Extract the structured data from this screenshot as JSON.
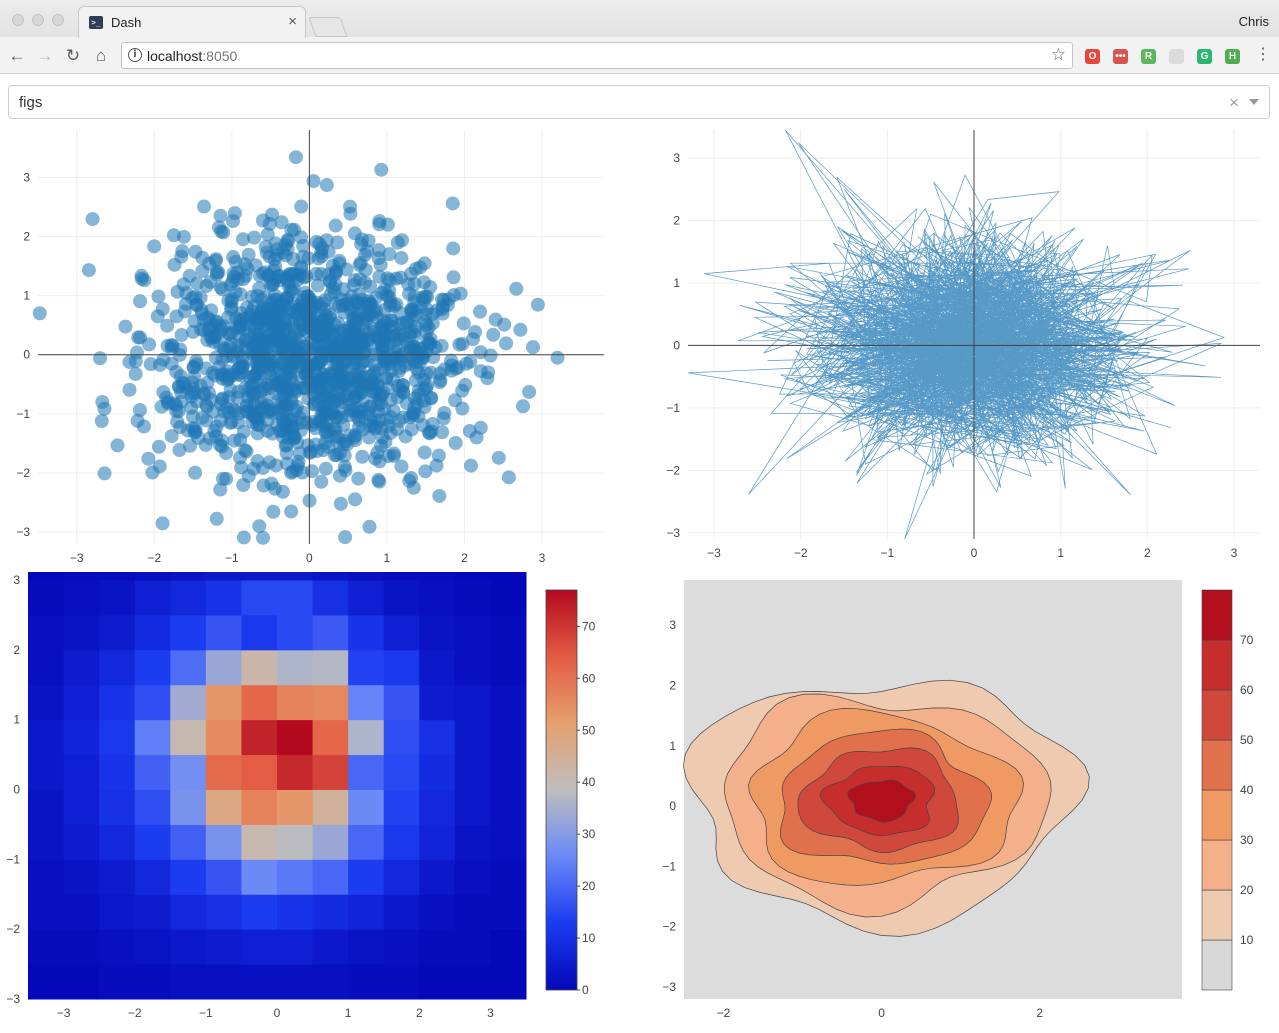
{
  "browser": {
    "tab_title": "Dash",
    "tab_favicon_text": ">_",
    "tab_close": "×",
    "profile_name": "Chris",
    "url_host": "localhost",
    "url_port": ":8050",
    "info_glyph": "i",
    "nav": {
      "back": "←",
      "forward": "→",
      "reload": "↻",
      "home": "⌂"
    },
    "star_glyph": "☆",
    "menu_glyph": "⋮",
    "extensions": [
      {
        "name": "opera-icon",
        "text": "O",
        "color": "#e8483c"
      },
      {
        "name": "lastpass-icon",
        "text": "•••",
        "color": "#d9534f"
      },
      {
        "name": "r-icon",
        "text": "R",
        "color": "#5cb85c"
      },
      {
        "name": "grey-extension-icon",
        "text": "",
        "color": "#dcdcdc"
      },
      {
        "name": "grammarly-icon",
        "text": "G",
        "color": "#2bb673"
      },
      {
        "name": "h-icon",
        "text": "H",
        "color": "#4cae4c"
      }
    ]
  },
  "dropdown": {
    "value": "figs",
    "clear_glyph": "×"
  },
  "colors": {
    "scatter_marker": "#1f77b4",
    "heatmap_low": "#0508b8",
    "heatmap_high": "#b2091e",
    "contour_bg": "#dcdcdc"
  },
  "chart_data": [
    {
      "type": "scatter",
      "description_mode": "markers",
      "xlim": [
        -3.5,
        3.8
      ],
      "ylim": [
        -3.2,
        3.8
      ],
      "x_ticks": [
        "−3",
        "−2",
        "−1",
        "0",
        "1",
        "2",
        "3"
      ],
      "x_tick_values": [
        -3,
        -2,
        -1,
        0,
        1,
        2,
        3
      ],
      "y_ticks": [
        "−3",
        "−2",
        "−1",
        "0",
        "1",
        "2",
        "3"
      ],
      "y_tick_values": [
        -3,
        -2,
        -1,
        0,
        1,
        2,
        3
      ],
      "grid": true,
      "marker_opacity": 0.55
    },
    {
      "type": "line",
      "xlim": [
        -3.3,
        3.3
      ],
      "ylim": [
        -3.1,
        3.45
      ],
      "x_ticks": [
        "−3",
        "−2",
        "−1",
        "0",
        "1",
        "2",
        "3"
      ],
      "x_tick_values": [
        -3,
        -2,
        -1,
        0,
        1,
        2,
        3
      ],
      "y_ticks": [
        "−3",
        "−2",
        "−1",
        "0",
        "1",
        "2",
        "3"
      ],
      "y_tick_values": [
        -3,
        -2,
        -1,
        0,
        1,
        2,
        3
      ],
      "grid": true
    },
    {
      "type": "heatmap",
      "xlim": [
        -3.5,
        3.5
      ],
      "ylim": [
        -3.0,
        3.0
      ],
      "x_ticks": [
        "−3",
        "−2",
        "−1",
        "0",
        "1",
        "2",
        "3"
      ],
      "x_tick_values": [
        -3,
        -2,
        -1,
        0,
        1,
        2,
        3
      ],
      "y_ticks": [
        "−3",
        "−2",
        "−1",
        "0",
        "1",
        "2",
        "3"
      ],
      "y_tick_values": [
        -3,
        -2,
        -1,
        0,
        1,
        2,
        3
      ],
      "colorbar_ticks": [
        "0",
        "10",
        "20",
        "30",
        "40",
        "50",
        "60",
        "70"
      ],
      "colorbar_range": [
        0,
        77
      ],
      "colorscale": [
        "#0508b8",
        "#1b3bf0",
        "#6a89f7",
        "#bebebe",
        "#e6a06e",
        "#e35b44",
        "#b2091e"
      ],
      "x_edges_start": -3.5,
      "y_edges_start": -3.0,
      "cell_size": 0.5,
      "z": [
        [
          0,
          0,
          1,
          1,
          2,
          2,
          2,
          2,
          2,
          1,
          1,
          0,
          0,
          0
        ],
        [
          1,
          1,
          2,
          3,
          4,
          5,
          6,
          6,
          4,
          3,
          2,
          1,
          1,
          0
        ],
        [
          2,
          2,
          4,
          5,
          8,
          10,
          13,
          11,
          9,
          7,
          4,
          2,
          1,
          1
        ],
        [
          2,
          3,
          5,
          8,
          13,
          17,
          26,
          23,
          20,
          13,
          8,
          4,
          2,
          1
        ],
        [
          3,
          5,
          8,
          13,
          19,
          28,
          41,
          38,
          33,
          20,
          12,
          7,
          3,
          2
        ],
        [
          3,
          6,
          10,
          16,
          28,
          48,
          57,
          53,
          44,
          26,
          14,
          8,
          4,
          2
        ],
        [
          4,
          6,
          11,
          19,
          27,
          61,
          64,
          72,
          68,
          20,
          15,
          9,
          4,
          2
        ],
        [
          4,
          7,
          12,
          24,
          41,
          55,
          73,
          77,
          62,
          36,
          16,
          10,
          4,
          2
        ],
        [
          3,
          6,
          11,
          16,
          34,
          53,
          62,
          57,
          56,
          25,
          17,
          5,
          4,
          2
        ],
        [
          2,
          5,
          8,
          13,
          21,
          33,
          42,
          36,
          37,
          14,
          12,
          4,
          2,
          1
        ],
        [
          2,
          3,
          5,
          9,
          13,
          17,
          12,
          15,
          18,
          11,
          6,
          3,
          2,
          1
        ],
        [
          1,
          2,
          3,
          6,
          8,
          11,
          15,
          15,
          10,
          6,
          3,
          2,
          1,
          0
        ],
        [
          0,
          1,
          1,
          2,
          3,
          4,
          4,
          4,
          3,
          2,
          1,
          1,
          0,
          0
        ]
      ]
    },
    {
      "type": "contour",
      "xlim": [
        -2.5,
        3.8
      ],
      "ylim": [
        -3.2,
        3.75
      ],
      "x_ticks": [
        "−2",
        "0",
        "2"
      ],
      "x_tick_values": [
        -2,
        0,
        2
      ],
      "y_ticks": [
        "−3",
        "−2",
        "−1",
        "0",
        "1",
        "2",
        "3"
      ],
      "y_tick_values": [
        -3,
        -2,
        -1,
        0,
        1,
        2,
        3
      ],
      "colorbar_ticks": [
        "10",
        "20",
        "30",
        "40",
        "50",
        "60",
        "70"
      ],
      "levels": [
        5,
        15,
        25,
        35,
        45,
        55,
        65
      ],
      "level_colors": [
        "#eecbb0",
        "#f4b08a",
        "#f09a63",
        "#e1704c",
        "#d0483b",
        "#c62d2d",
        "#b20f1e"
      ],
      "colorbar_bins": [
        "#d8d8d8",
        "#eecbb0",
        "#f4b08a",
        "#f09a63",
        "#e1704c",
        "#d0483b",
        "#c62d2d",
        "#b20f1e"
      ],
      "center": [
        0.0,
        0.1
      ],
      "radii": [
        2.3,
        1.95,
        1.6,
        1.25,
        0.95,
        0.65,
        0.38
      ]
    }
  ]
}
